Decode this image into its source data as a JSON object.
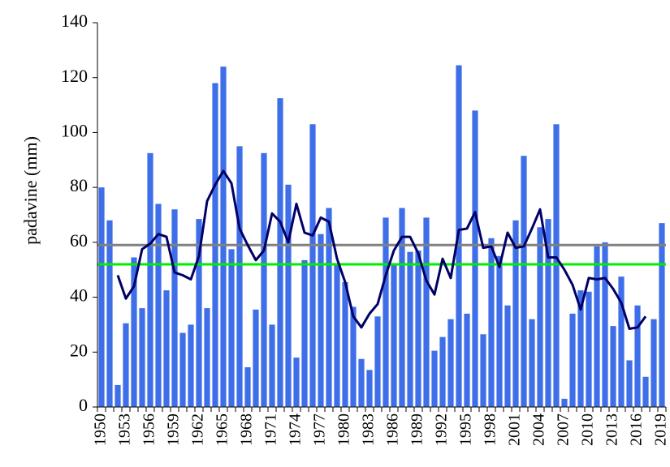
{
  "chart_data": {
    "type": "bar",
    "y_label": "padavine (mm)",
    "categories": [
      "1950",
      null,
      null,
      "1953",
      null,
      null,
      "1956",
      null,
      null,
      "1959",
      null,
      null,
      "1962",
      null,
      null,
      "1965",
      null,
      null,
      "1968",
      null,
      null,
      "1971",
      null,
      null,
      "1974",
      null,
      null,
      "1977",
      null,
      null,
      "1980",
      null,
      null,
      "1983",
      null,
      null,
      "1986",
      null,
      null,
      "1989",
      null,
      null,
      "1992",
      null,
      null,
      "1995",
      null,
      null,
      "1998",
      null,
      null,
      "2001",
      null,
      null,
      "2004",
      null,
      null,
      "2007",
      null,
      null,
      "2010",
      null,
      null,
      "2013",
      null,
      null,
      "2016",
      null,
      null,
      "2019"
    ],
    "series": [
      {
        "type": "bar",
        "color": "#3f6fe8",
        "values": [
          80,
          68,
          8,
          30.5,
          54.5,
          36,
          92.5,
          74,
          42.5,
          72,
          27,
          30,
          68.5,
          36,
          118,
          124,
          57.5,
          95,
          14.5,
          35.5,
          92.5,
          30,
          112.5,
          81,
          18,
          53.5,
          103,
          63,
          72.5,
          52,
          45.5,
          36.5,
          17.5,
          13.5,
          33,
          69,
          52,
          72.5,
          56.5,
          57,
          69,
          20.5,
          25.5,
          32,
          124.5,
          34,
          108,
          26.5,
          61.5,
          55,
          37,
          68,
          91.5,
          32,
          65.5,
          68.5,
          103,
          3,
          34,
          42.5,
          42,
          58.5,
          60,
          29.5,
          47.5,
          17,
          37,
          11,
          32,
          67
        ]
      },
      {
        "type": "line",
        "color": "#000066",
        "values": [
          null,
          null,
          48,
          39.5,
          44,
          57.5,
          59.5,
          63,
          62,
          49,
          48,
          46.5,
          55,
          75,
          81,
          86,
          81.5,
          65,
          59,
          53.5,
          57,
          70.5,
          67.5,
          60,
          74,
          63.5,
          62.5,
          69,
          67.5,
          54,
          45.5,
          33,
          29,
          34,
          37.5,
          48,
          57,
          62,
          62,
          56,
          46,
          41,
          54,
          47,
          64.5,
          65,
          71,
          58,
          58.5,
          51,
          63.5,
          58,
          58.5,
          65,
          72,
          54.5,
          54.5,
          50,
          44.5,
          35.5,
          47,
          46.5,
          47,
          43,
          38,
          28.5,
          29,
          33,
          null,
          null
        ]
      }
    ],
    "reference_lines": [
      {
        "value": 59,
        "color": "#808080"
      },
      {
        "value": 52,
        "color": "#00ee00"
      }
    ],
    "ylim": [
      0,
      140
    ],
    "yticks": [
      0,
      20,
      40,
      60,
      80,
      100,
      120,
      140
    ]
  }
}
